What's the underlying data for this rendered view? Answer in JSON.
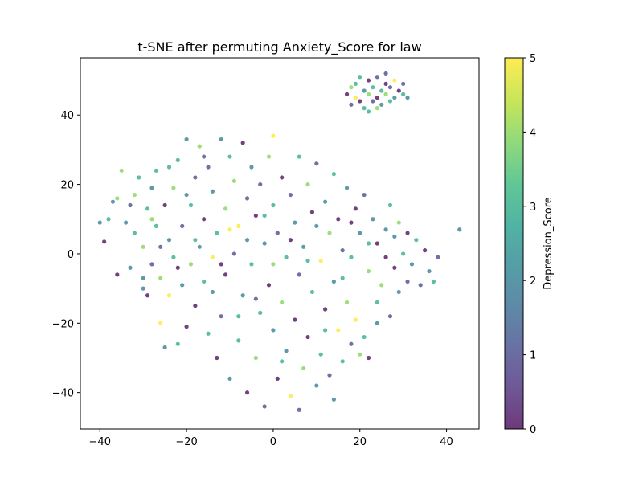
{
  "chart_data": {
    "type": "scatter",
    "title": "t-SNE after permuting Anxiety_Score for law",
    "xlabel": "",
    "ylabel": "",
    "xlim": [
      -44.5,
      47.5
    ],
    "ylim": [
      -50.5,
      56.5
    ],
    "x_ticks": [
      -40,
      -20,
      0,
      20,
      40
    ],
    "y_ticks": [
      -40,
      -20,
      0,
      20,
      40
    ],
    "colorbar": {
      "label": "Depression_Score",
      "min": 0,
      "max": 5,
      "ticks": [
        0,
        1,
        2,
        3,
        4,
        5
      ],
      "colormap": "viridis"
    },
    "marker_alpha": 0.75,
    "clusters": [
      {
        "name": "main",
        "points": [
          [
            -40,
            9,
            2
          ],
          [
            -39,
            3.5,
            0
          ],
          [
            -38,
            10,
            3
          ],
          [
            -37,
            15,
            2
          ],
          [
            -36,
            16,
            4
          ],
          [
            -35,
            24,
            4
          ],
          [
            -36,
            -6,
            0
          ],
          [
            -34,
            9,
            2
          ],
          [
            -33,
            -4,
            2
          ],
          [
            -33,
            14,
            1
          ],
          [
            -32,
            6,
            3
          ],
          [
            -32,
            17,
            4
          ],
          [
            -31,
            22,
            3
          ],
          [
            -30,
            -10,
            2
          ],
          [
            -30,
            2,
            4
          ],
          [
            -29,
            13,
            3
          ],
          [
            -29,
            -12,
            0
          ],
          [
            -28,
            19,
            2
          ],
          [
            -28,
            -3,
            1
          ],
          [
            -27,
            8,
            3
          ],
          [
            -27,
            24,
            3
          ],
          [
            -26,
            -7,
            4
          ],
          [
            -26,
            -20,
            5
          ],
          [
            -25,
            -27,
            2
          ],
          [
            -25,
            14,
            0
          ],
          [
            -24,
            4,
            2
          ],
          [
            -24,
            -12,
            5
          ],
          [
            -23,
            19,
            4
          ],
          [
            -23,
            -1,
            3
          ],
          [
            -22,
            27,
            3
          ],
          [
            -22,
            -26,
            3
          ],
          [
            -21,
            8,
            1
          ],
          [
            -21,
            -9,
            2
          ],
          [
            -20,
            33,
            2
          ],
          [
            -20,
            -21,
            0
          ],
          [
            -19,
            14,
            3
          ],
          [
            -19,
            -3,
            4
          ],
          [
            -18,
            22,
            1
          ],
          [
            -18,
            -15,
            0
          ],
          [
            -17,
            31,
            4
          ],
          [
            -17,
            2,
            2
          ],
          [
            -16,
            -8,
            3
          ],
          [
            -16,
            10,
            0
          ],
          [
            -15,
            -23,
            3
          ],
          [
            -15,
            25,
            1
          ],
          [
            -14,
            -1,
            5
          ],
          [
            -14,
            18,
            2
          ],
          [
            -13,
            -30,
            0
          ],
          [
            -13,
            6,
            3
          ],
          [
            -12,
            33,
            2
          ],
          [
            -12,
            -18,
            1
          ],
          [
            -11,
            13,
            4
          ],
          [
            -11,
            -6,
            0
          ],
          [
            -10,
            28,
            3
          ],
          [
            -10,
            -36,
            2
          ],
          [
            -9,
            0,
            1
          ],
          [
            -9,
            21,
            4
          ],
          [
            -8,
            -25,
            3
          ],
          [
            -8,
            8,
            5
          ],
          [
            -7,
            32,
            0
          ],
          [
            -7,
            -12,
            2
          ],
          [
            -6,
            16,
            1
          ],
          [
            -6,
            -40,
            0
          ],
          [
            -5,
            -3,
            3
          ],
          [
            -5,
            25,
            2
          ],
          [
            -4,
            -30,
            4
          ],
          [
            -4,
            11,
            0
          ],
          [
            -3,
            -17,
            3
          ],
          [
            -3,
            20,
            1
          ],
          [
            -2,
            3,
            2
          ],
          [
            -2,
            -44,
            1
          ],
          [
            -1,
            -9,
            0
          ],
          [
            -1,
            28,
            4
          ],
          [
            0,
            14,
            3
          ],
          [
            0,
            -22,
            2
          ],
          [
            0,
            34,
            5
          ],
          [
            1,
            -36,
            0
          ],
          [
            1,
            6,
            1
          ],
          [
            2,
            -14,
            4
          ],
          [
            2,
            22,
            0
          ],
          [
            3,
            -1,
            3
          ],
          [
            3,
            -28,
            2
          ],
          [
            4,
            17,
            1
          ],
          [
            4,
            -41,
            5
          ],
          [
            5,
            9,
            2
          ],
          [
            5,
            -19,
            0
          ],
          [
            6,
            28,
            3
          ],
          [
            6,
            -6,
            1
          ],
          [
            7,
            -33,
            4
          ],
          [
            7,
            2,
            2
          ],
          [
            8,
            -24,
            0
          ],
          [
            8,
            20,
            4
          ],
          [
            9,
            -11,
            3
          ],
          [
            9,
            12,
            0
          ],
          [
            10,
            -38,
            2
          ],
          [
            10,
            26,
            1
          ],
          [
            11,
            -2,
            5
          ],
          [
            11,
            -29,
            3
          ],
          [
            12,
            15,
            2
          ],
          [
            12,
            -16,
            0
          ],
          [
            13,
            6,
            4
          ],
          [
            13,
            -35,
            1
          ],
          [
            14,
            23,
            3
          ],
          [
            14,
            -8,
            2
          ],
          [
            15,
            -22,
            5
          ],
          [
            15,
            10,
            0
          ],
          [
            16,
            -31,
            3
          ],
          [
            16,
            1,
            1
          ],
          [
            17,
            19,
            2
          ],
          [
            17,
            -14,
            4
          ],
          [
            18,
            -26,
            1
          ],
          [
            18,
            -1,
            3
          ],
          [
            19,
            13,
            0
          ],
          [
            19,
            -19,
            5
          ],
          [
            20,
            6,
            2
          ],
          [
            21,
            -24,
            3
          ],
          [
            21,
            17,
            1
          ],
          [
            22,
            -5,
            4
          ],
          [
            22,
            -30,
            0
          ],
          [
            23,
            10,
            2
          ],
          [
            24,
            -14,
            3
          ],
          [
            24,
            3,
            0
          ],
          [
            25,
            -9,
            4
          ],
          [
            26,
            7,
            2
          ],
          [
            27,
            -18,
            1
          ],
          [
            27,
            14,
            3
          ],
          [
            28,
            -4,
            0
          ],
          [
            29,
            -11,
            2
          ],
          [
            29,
            9,
            4
          ],
          [
            30,
            0,
            3
          ],
          [
            31,
            -8,
            1
          ],
          [
            31,
            6,
            0
          ],
          [
            32,
            -3,
            2
          ],
          [
            33,
            4,
            3
          ],
          [
            34,
            -9,
            1
          ],
          [
            35,
            1,
            0
          ],
          [
            36,
            -5,
            2
          ],
          [
            37,
            -8,
            3
          ],
          [
            38,
            -1,
            1
          ],
          [
            43,
            7,
            2
          ],
          [
            -30,
            -7,
            2
          ],
          [
            -28,
            10,
            4
          ],
          [
            -26,
            2,
            1
          ],
          [
            -24,
            25,
            3
          ],
          [
            -22,
            -4,
            0
          ],
          [
            -20,
            17,
            2
          ],
          [
            -18,
            4,
            3
          ],
          [
            -16,
            28,
            1
          ],
          [
            -14,
            -11,
            2
          ],
          [
            -12,
            -3,
            0
          ],
          [
            -10,
            7,
            5
          ],
          [
            -8,
            -18,
            3
          ],
          [
            -6,
            4,
            2
          ],
          [
            -4,
            -13,
            1
          ],
          [
            -2,
            11,
            3
          ],
          [
            0,
            -3,
            4
          ],
          [
            2,
            -31,
            3
          ],
          [
            4,
            4,
            0
          ],
          [
            6,
            -45,
            1
          ],
          [
            8,
            -2,
            3
          ],
          [
            10,
            8,
            2
          ],
          [
            12,
            -22,
            3
          ],
          [
            14,
            -42,
            2
          ],
          [
            16,
            -7,
            3
          ],
          [
            18,
            9,
            0
          ],
          [
            20,
            -29,
            4
          ],
          [
            22,
            3,
            3
          ],
          [
            24,
            -20,
            2
          ],
          [
            26,
            -1,
            0
          ],
          [
            28,
            5,
            2
          ]
        ]
      },
      {
        "name": "upper-right",
        "points": [
          [
            17,
            46,
            0
          ],
          [
            18,
            48,
            4
          ],
          [
            18,
            43,
            1
          ],
          [
            19,
            49,
            3
          ],
          [
            19,
            45,
            5
          ],
          [
            20,
            51,
            3
          ],
          [
            20,
            44,
            0
          ],
          [
            21,
            47,
            2
          ],
          [
            21,
            42,
            3
          ],
          [
            22,
            50,
            0
          ],
          [
            22,
            46,
            4
          ],
          [
            23,
            44,
            1
          ],
          [
            23,
            48,
            3
          ],
          [
            24,
            51,
            1
          ],
          [
            24,
            45,
            0
          ],
          [
            25,
            47,
            3
          ],
          [
            25,
            43,
            2
          ],
          [
            26,
            49,
            0
          ],
          [
            26,
            46,
            4
          ],
          [
            27,
            44,
            3
          ],
          [
            27,
            48,
            1
          ],
          [
            28,
            50,
            5
          ],
          [
            28,
            45,
            2
          ],
          [
            29,
            47,
            0
          ],
          [
            30,
            46,
            3
          ],
          [
            30,
            49,
            1
          ],
          [
            31,
            45,
            2
          ],
          [
            24,
            42,
            4
          ],
          [
            22,
            41,
            3
          ],
          [
            26,
            52,
            1
          ]
        ]
      }
    ]
  }
}
